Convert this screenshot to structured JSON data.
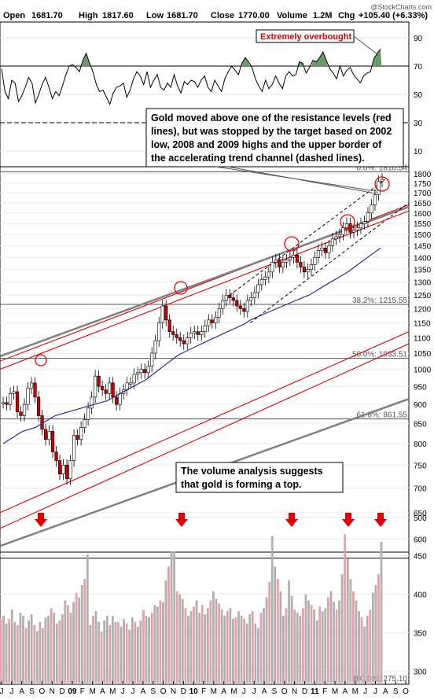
{
  "header": {
    "open_label": "Open",
    "open": "1681.70",
    "high_label": "High",
    "high": "1817.60",
    "low_label": "Low",
    "low": "1681.70",
    "close_label": "Close",
    "close": "1770.00",
    "volume_label": "Volume",
    "volume": "1.2M",
    "chg_label": "Chg",
    "chg": "+105.40 (+6.33%)",
    "watermark": "@StockCharts.com"
  },
  "annotations": {
    "overbought": "Extremely overbought",
    "gold_note": [
      "Gold moved above one of the resistance levels (red",
      "lines), but was stopped by the target based on 2002",
      "low, 2008 and 2009 highs and the upper border of",
      "the accelerating trend channel (dashed lines)."
    ],
    "volume_note": [
      "The volume analysis suggests",
      "that gold is forming a top."
    ]
  },
  "colors": {
    "candle_up": "#ffffff",
    "candle_down": "#cc0000",
    "resistance": "#e00000",
    "trend": "#808080",
    "moving_average": "#2a2a9a",
    "rsi_fill": "#6a9a6a",
    "volume_up": "#b0b0b0",
    "volume_down": "#e8a0a8",
    "arrow": "#e00000"
  },
  "chart_data": [
    {
      "type": "line",
      "panel": "RSI",
      "y_ticks": [
        "90",
        "70",
        "50",
        "30",
        "10"
      ],
      "ylim": [
        0,
        100
      ],
      "reference_levels": [
        70,
        30
      ],
      "values": [
        68,
        52,
        47,
        60,
        58,
        45,
        49,
        55,
        62,
        58,
        44,
        50,
        57,
        62,
        55,
        47,
        52,
        49,
        56,
        64,
        70,
        71,
        69,
        66,
        74,
        79,
        72,
        66,
        57,
        52,
        53,
        48,
        43,
        51,
        55,
        56,
        58,
        48,
        53,
        61,
        66,
        63,
        57,
        66,
        55,
        60,
        64,
        55,
        53,
        58,
        55,
        64,
        56,
        51,
        59,
        57,
        60,
        59,
        55,
        60,
        63,
        55,
        52,
        60,
        56,
        52,
        61,
        66,
        70,
        67,
        64,
        72,
        76,
        73,
        69,
        61,
        56,
        52,
        60,
        54,
        57,
        63,
        58,
        54,
        63,
        66,
        63,
        64,
        73,
        72,
        65,
        69,
        74,
        73,
        76,
        80,
        74,
        68,
        65,
        61,
        70,
        63,
        67,
        69,
        64,
        61,
        58,
        63,
        65,
        66,
        75,
        79,
        82
      ]
    },
    {
      "type": "candlestick",
      "panel": "Price",
      "y_ticks": [
        "1800",
        "1750",
        "1700",
        "1650",
        "1600",
        "1550",
        "1500",
        "1450",
        "1400",
        "1350",
        "1300",
        "1250",
        "1200",
        "1150",
        "1100",
        "1050",
        "1000",
        "950",
        "900",
        "850",
        "800",
        "750",
        "700",
        "650",
        "600"
      ],
      "ylim": [
        580,
        1830
      ],
      "scale": "log",
      "fibonacci_labels": [
        "0.0%: 1810.54",
        "38.2%: 1215.55",
        "50.0%: 1033.51",
        "61.8%: 861.55"
      ],
      "close": [
        905,
        900,
        930,
        935,
        880,
        870,
        900,
        945,
        960,
        920,
        870,
        835,
        810,
        830,
        780,
        760,
        730,
        750,
        720,
        760,
        820,
        810,
        840,
        860,
        890,
        920,
        980,
        950,
        940,
        930,
        960,
        920,
        900,
        930,
        940,
        960,
        960,
        985,
        990,
        1000,
        990,
        1010,
        1050,
        1090,
        1150,
        1210,
        1160,
        1120,
        1110,
        1100,
        1090,
        1080,
        1100,
        1115,
        1120,
        1110,
        1120,
        1140,
        1160,
        1150,
        1170,
        1200,
        1230,
        1250,
        1240,
        1230,
        1210,
        1200,
        1190,
        1230,
        1240,
        1260,
        1290,
        1310,
        1320,
        1340,
        1380,
        1390,
        1360,
        1380,
        1390,
        1400,
        1410,
        1380,
        1360,
        1340,
        1350,
        1370,
        1400,
        1430,
        1440,
        1420,
        1450,
        1480,
        1490,
        1500,
        1530,
        1550,
        1510,
        1520,
        1530,
        1550,
        1560,
        1600,
        1640,
        1690,
        1760,
        1770
      ],
      "moving_average": [
        800,
        810,
        820,
        830,
        835,
        840,
        850,
        860,
        870,
        875,
        880,
        885,
        890,
        895,
        900,
        905,
        910,
        920,
        930,
        940,
        950,
        960,
        970,
        985,
        1000,
        1015,
        1030,
        1045,
        1055,
        1065,
        1075,
        1085,
        1095,
        1105,
        1115,
        1125,
        1135,
        1145,
        1160,
        1170,
        1180,
        1190,
        1200,
        1210,
        1220,
        1230,
        1240,
        1250,
        1265,
        1280,
        1295,
        1310,
        1325,
        1340,
        1360,
        1380,
        1400,
        1420,
        1440
      ]
    },
    {
      "type": "bar",
      "panel": "Volume",
      "y_ticks": [
        "500",
        "450",
        "400",
        "350",
        "300"
      ],
      "fibonacci_labels": [
        "100.0%: 275.10"
      ],
      "ylim": [
        285,
        510
      ],
      "reference_level": 447,
      "values": [
        368,
        372,
        362,
        368,
        380,
        364,
        360,
        376,
        372,
        356,
        366,
        374,
        360,
        352,
        364,
        356,
        370,
        372,
        382,
        376,
        362,
        366,
        374,
        392,
        386,
        376,
        390,
        402,
        396,
        412,
        420,
        452,
        360,
        372,
        378,
        364,
        352,
        366,
        372,
        360,
        372,
        364,
        364,
        358,
        368,
        362,
        354,
        370,
        364,
        358,
        366,
        380,
        372,
        370,
        376,
        386,
        384,
        392,
        390,
        418,
        436,
        456,
        456,
        404,
        400,
        394,
        382,
        372,
        378,
        384,
        392,
        376,
        386,
        374,
        382,
        392,
        404,
        394,
        388,
        380,
        372,
        378,
        382,
        368,
        370,
        378,
        372,
        368,
        362,
        374,
        378,
        362,
        356,
        376,
        382,
        396,
        416,
        476,
        436,
        420,
        404,
        372,
        382,
        418,
        398,
        380,
        376,
        372,
        382,
        400,
        392,
        386,
        380,
        366,
        384,
        378,
        382,
        396,
        404,
        390,
        380,
        392,
        426,
        478,
        446,
        420,
        404,
        392,
        378,
        370,
        358,
        372,
        380,
        402,
        412,
        426,
        468
      ]
    }
  ],
  "x_axis_labels": [
    "J",
    "J",
    "A",
    "S",
    "O",
    "N",
    "D",
    "09",
    "F",
    "M",
    "A",
    "M",
    "J",
    "J",
    "A",
    "S",
    "O",
    "N",
    "D",
    "10",
    "F",
    "M",
    "A",
    "M",
    "J",
    "J",
    "A",
    "S",
    "O",
    "N",
    "D",
    "11",
    "F",
    "M",
    "A",
    "M",
    "J",
    "J",
    "A",
    "S",
    "O"
  ]
}
